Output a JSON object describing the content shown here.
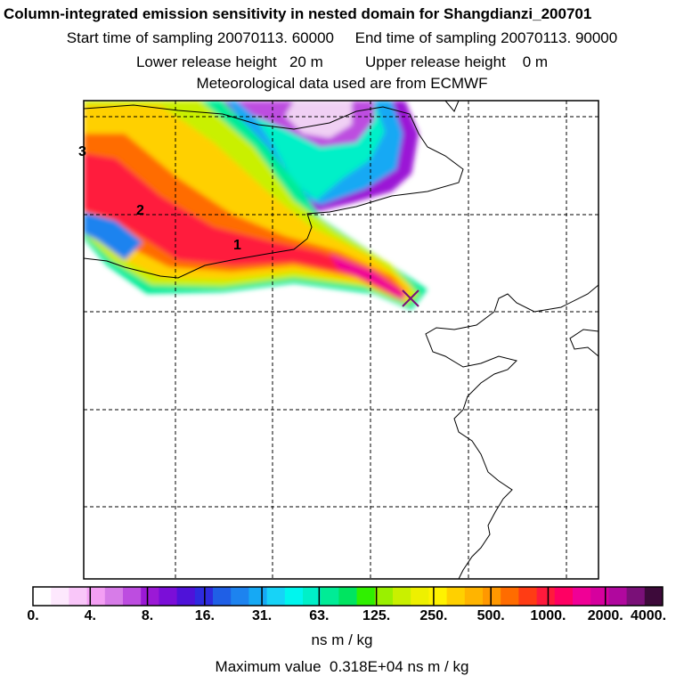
{
  "header": {
    "title": "Column-integrated emission sensitivity in nested domain for Shangdianzi_200701",
    "start_label": "Start time of sampling",
    "start_value": "20070113. 60000",
    "end_label": "End time of sampling",
    "end_value": "20070113. 90000",
    "lower_label": "Lower release height",
    "lower_value": "20 m",
    "upper_label": "Upper release height",
    "upper_value": "0 m",
    "met_text": "Meteorological data used are from ECMWF"
  },
  "map": {
    "plume_labels": [
      "1",
      "2",
      "3"
    ],
    "release_marker": "release-site-x"
  },
  "colorbar": {
    "colors": [
      "#ffffff",
      "#fde8fd",
      "#f9c6f9",
      "#f49ff4",
      "#d77ce8",
      "#bd4de0",
      "#9b19d6",
      "#7b0ed8",
      "#4f12d9",
      "#2e2bdf",
      "#1f5fe6",
      "#1d83ef",
      "#16a9f4",
      "#17d3f7",
      "#00f6ee",
      "#00f0c8",
      "#00ec96",
      "#00e460",
      "#30f000",
      "#9af000",
      "#c9f000",
      "#eef000",
      "#fff200",
      "#ffd000",
      "#ffb400",
      "#ff9800",
      "#ff6c00",
      "#ff3c14",
      "#ff1a3c",
      "#ff0063",
      "#f00096",
      "#d6009e",
      "#b0089e",
      "#7a1078",
      "#3d0a3a"
    ],
    "tick_labels": [
      "0.",
      "4.",
      "8.",
      "16.",
      "31.",
      "63.",
      "125.",
      "250.",
      "500.",
      "1000.",
      "2000.",
      "4000."
    ],
    "units": "ns m / kg"
  },
  "footer": {
    "max_label": "Maximum value",
    "max_value": "0.318E+04 ns m / kg"
  }
}
